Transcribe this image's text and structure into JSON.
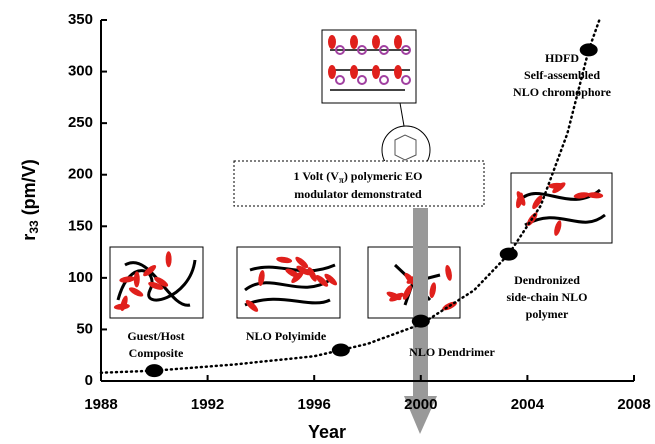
{
  "chart_data": {
    "type": "scatter",
    "x": [
      1990,
      1997,
      2000,
      2003.3,
      2006.3
    ],
    "values": [
      10,
      30,
      58,
      123,
      321
    ],
    "color": "#000000",
    "trend": {
      "x": [
        1988,
        1990,
        1993,
        1996,
        1998,
        2000,
        2002,
        2003.3,
        2004.5,
        2005.5,
        2006.3,
        2006.7
      ],
      "values": [
        8,
        10,
        16,
        24,
        36,
        55,
        88,
        123,
        170,
        240,
        321,
        350
      ]
    },
    "xlim": [
      1988,
      2008
    ],
    "xticks": [
      1988,
      1992,
      1996,
      2000,
      2004,
      2008
    ],
    "ylim": [
      0,
      350
    ],
    "yticks": [
      0,
      50,
      100,
      150,
      200,
      250,
      300,
      350
    ],
    "xlabel": "Year",
    "ylabel": [
      "r",
      "33",
      " (pm/V)"
    ],
    "annotations": [
      {
        "lines": [
          "Guest/Host",
          "Composite"
        ]
      },
      {
        "lines": [
          "NLO Polyimide"
        ]
      },
      {
        "lines": [
          "NLO Dendrimer"
        ]
      },
      {
        "lines": [
          "Dendronized",
          "side-chain NLO",
          "polymer"
        ]
      },
      {
        "lines": [
          "HDFD",
          "Self-assembled",
          "NLO chromophore"
        ]
      }
    ],
    "callout": [
      "1 Volt (V",
      "π",
      ") polymeric EO",
      "modulator demonstrated"
    ]
  }
}
